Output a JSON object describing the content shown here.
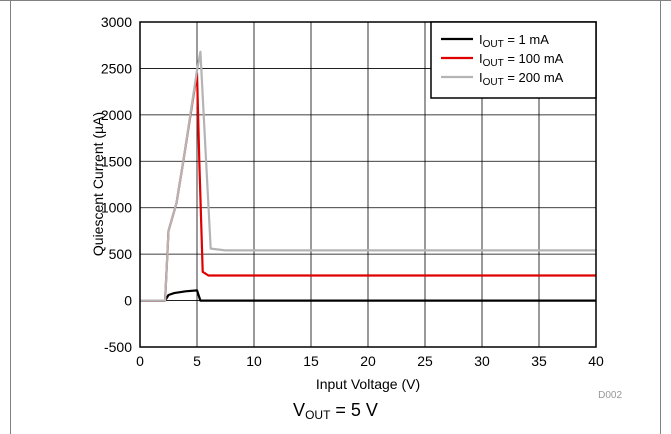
{
  "chart_data": {
    "type": "line",
    "xlabel": "Input Voltage (V)",
    "ylabel": "Quiescent Current (µA)",
    "xlim": [
      0,
      40
    ],
    "ylim": [
      -500,
      3000
    ],
    "xticks": [
      0,
      5,
      10,
      15,
      20,
      25,
      30,
      35,
      40
    ],
    "yticks": [
      -500,
      0,
      500,
      1000,
      1500,
      2000,
      2500,
      3000
    ],
    "grid": true,
    "legend_position": "top-right",
    "series": [
      {
        "name": "I_OUT = 1 mA",
        "legend": {
          "prefix": "I",
          "sub": "OUT",
          "suffix": " = 1 mA"
        },
        "color": "#000000",
        "x": [
          0,
          2.2,
          2.5,
          3.0,
          4.0,
          5.0,
          5.3,
          6.0,
          8.0,
          40
        ],
        "y": [
          0,
          0,
          60,
          80,
          100,
          110,
          0,
          0,
          0,
          0
        ]
      },
      {
        "name": "I_OUT = 100 mA",
        "legend": {
          "prefix": "I",
          "sub": "OUT",
          "suffix": " = 100 mA"
        },
        "color": "#e00000",
        "x": [
          0,
          2.2,
          2.5,
          3.2,
          3.8,
          5.0,
          5.2,
          5.5,
          6.0,
          8.0,
          40
        ],
        "y": [
          0,
          0,
          750,
          1050,
          1500,
          2450,
          1500,
          310,
          270,
          270,
          270
        ]
      },
      {
        "name": "I_OUT = 200 mA",
        "legend": {
          "prefix": "I",
          "sub": "OUT",
          "suffix": " = 200 mA"
        },
        "color": "#b4b4b4",
        "x": [
          0,
          2.2,
          2.5,
          3.2,
          3.8,
          5.0,
          5.3,
          5.8,
          6.2,
          7.5,
          40
        ],
        "y": [
          0,
          0,
          750,
          1050,
          1500,
          2480,
          2680,
          1500,
          560,
          540,
          540
        ]
      }
    ],
    "annotation": "D002"
  },
  "caption": {
    "prefix": "V",
    "sub": "OUT",
    "suffix": " = 5 V"
  }
}
